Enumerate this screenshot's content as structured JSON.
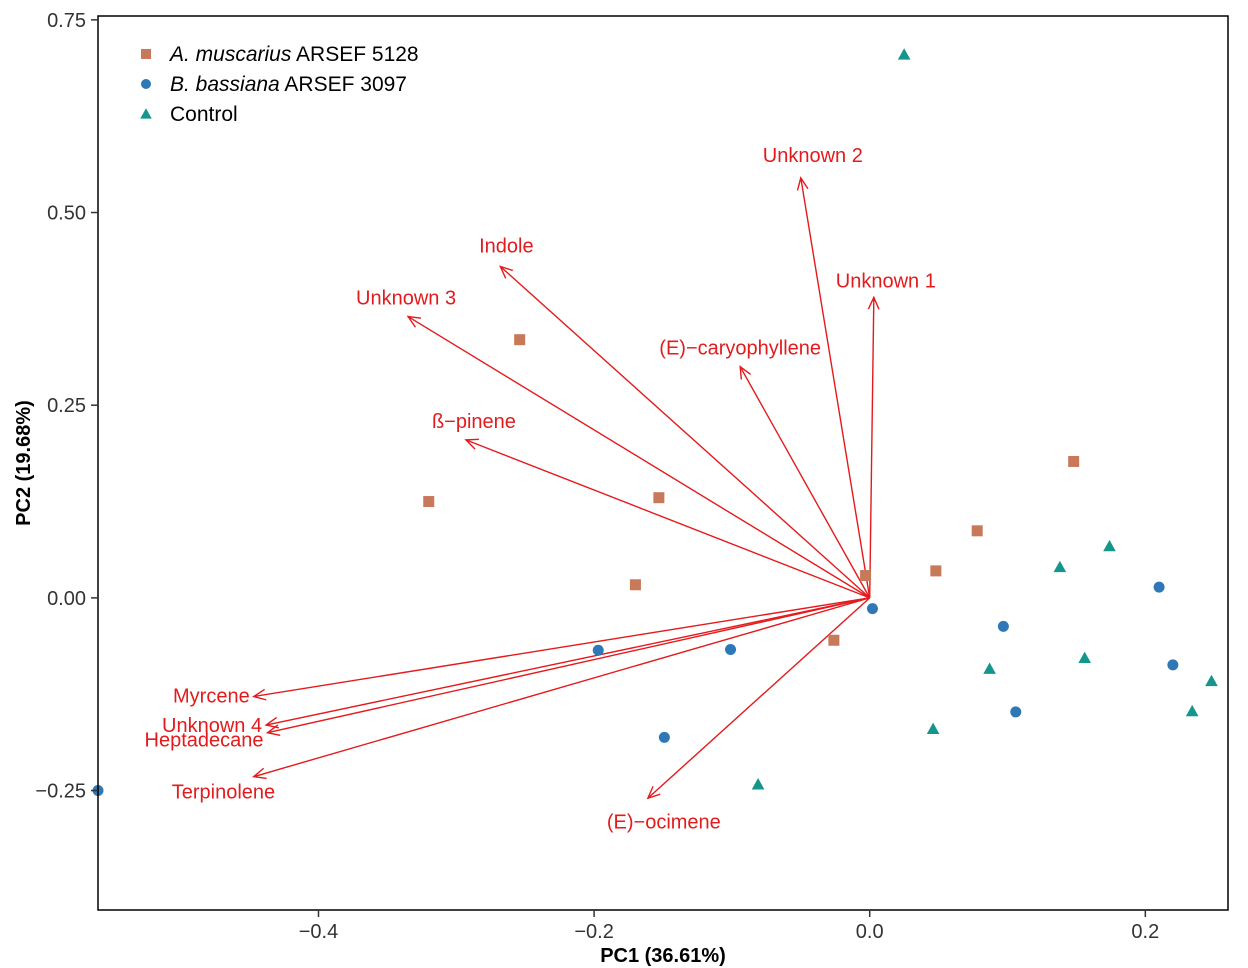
{
  "chart_data": {
    "type": "scatter",
    "title": "",
    "xlabel": "PC1 (36.61%)",
    "ylabel": "PC2 (19.68%)",
    "xlim": [
      -0.56,
      0.26
    ],
    "ylim": [
      -0.405,
      0.755
    ],
    "x_ticks": [
      -0.4,
      -0.2,
      0.0,
      0.2
    ],
    "x_tick_labels": [
      "−0.4",
      "−0.2",
      "0.0",
      "0.2"
    ],
    "y_ticks": [
      0.75,
      0.5,
      0.25,
      0.0,
      -0.25
    ],
    "y_tick_labels": [
      "0.75",
      "0.50",
      "0.25",
      "0.00",
      "−0.25"
    ],
    "grid": false,
    "legend_position": "top-left",
    "colors": {
      "a_muscarius": "#c8795a",
      "b_bassiana": "#2e78b8",
      "control": "#15968c",
      "loadings": "#e41a1c"
    },
    "series": [
      {
        "key": "a_muscarius",
        "name_italic": "A. muscarius",
        "name_rest": " ARSEF 5128",
        "marker": "square",
        "points": [
          {
            "x": -0.32,
            "y": 0.125
          },
          {
            "x": -0.254,
            "y": 0.335
          },
          {
            "x": -0.153,
            "y": 0.13
          },
          {
            "x": -0.17,
            "y": 0.017
          },
          {
            "x": -0.003,
            "y": 0.029
          },
          {
            "x": -0.026,
            "y": -0.055
          },
          {
            "x": 0.048,
            "y": 0.035
          },
          {
            "x": 0.078,
            "y": 0.087
          },
          {
            "x": 0.148,
            "y": 0.177
          }
        ]
      },
      {
        "key": "b_bassiana",
        "name_italic": "B. bassiana",
        "name_rest": " ARSEF 3097",
        "marker": "circle",
        "points": [
          {
            "x": -0.56,
            "y": -0.25
          },
          {
            "x": -0.197,
            "y": -0.068
          },
          {
            "x": -0.101,
            "y": -0.067
          },
          {
            "x": -0.149,
            "y": -0.181
          },
          {
            "x": 0.002,
            "y": -0.014
          },
          {
            "x": 0.097,
            "y": -0.037
          },
          {
            "x": 0.106,
            "y": -0.148
          },
          {
            "x": 0.21,
            "y": 0.014
          },
          {
            "x": 0.22,
            "y": -0.087
          }
        ]
      },
      {
        "key": "control",
        "name": "Control",
        "marker": "triangle",
        "points": [
          {
            "x": 0.025,
            "y": 0.705
          },
          {
            "x": 0.138,
            "y": 0.04
          },
          {
            "x": 0.174,
            "y": 0.067
          },
          {
            "x": 0.087,
            "y": -0.092
          },
          {
            "x": 0.156,
            "y": -0.078
          },
          {
            "x": 0.046,
            "y": -0.17
          },
          {
            "x": -0.081,
            "y": -0.242
          },
          {
            "x": 0.234,
            "y": -0.147
          },
          {
            "x": 0.248,
            "y": -0.108
          }
        ]
      }
    ],
    "loadings": [
      {
        "label": "Unknown 2",
        "x": -0.05,
        "y": 0.545
      },
      {
        "label": "Indole",
        "x": -0.268,
        "y": 0.43
      },
      {
        "label": "Unknown 1",
        "x": 0.003,
        "y": 0.39
      },
      {
        "label": "Unknown 3",
        "x": -0.335,
        "y": 0.365
      },
      {
        "label": "(E)−caryophyllene",
        "x": -0.094,
        "y": 0.3
      },
      {
        "label": "ß−pinene",
        "x": -0.293,
        "y": 0.205
      },
      {
        "label": "Myrcene",
        "x": -0.447,
        "y": -0.128
      },
      {
        "label": "Unknown 4",
        "x": -0.438,
        "y": -0.165
      },
      {
        "label": "Heptadecane",
        "x": -0.437,
        "y": -0.175
      },
      {
        "label": "Terpinolene",
        "x": -0.447,
        "y": -0.232
      },
      {
        "label": "(E)−ocimene",
        "x": -0.161,
        "y": -0.26
      }
    ]
  }
}
